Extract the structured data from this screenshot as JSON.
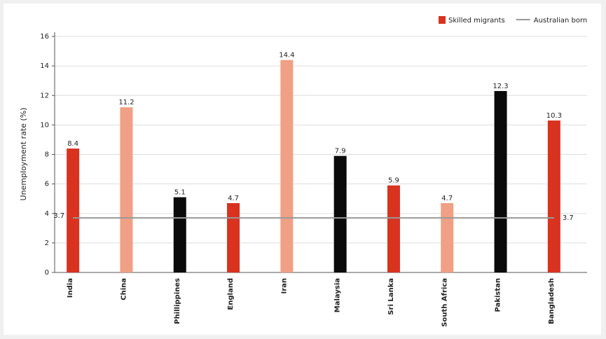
{
  "chart_data": {
    "type": "bar",
    "y_label": "Unemployment rate (%)",
    "categories": [
      "India",
      "China",
      "Phillippines",
      "England",
      "Iran",
      "Malaysia",
      "Sri Lanka",
      "South Africa",
      "Pakistan",
      "Bangladesh"
    ],
    "series": [
      {
        "name": "Skilled migrants",
        "type": "bar",
        "color": "#d9321f",
        "colors": [
          "#d9321f",
          "#f0a084",
          "#0a0a0a",
          "#d9321f",
          "#f0a084",
          "#0a0a0a",
          "#d9321f",
          "#f0a084",
          "#0a0a0a",
          "#d9321f"
        ],
        "values": [
          8.4,
          11.2,
          5.1,
          4.7,
          14.4,
          7.9,
          5.9,
          4.7,
          12.3,
          10.3
        ]
      },
      {
        "name": "Australian born",
        "type": "line",
        "color": "#999999",
        "values": [
          3.7,
          3.7,
          3.7,
          3.7,
          3.7,
          3.7,
          3.7,
          3.7,
          3.7,
          3.7
        ]
      }
    ],
    "ylim": [
      0,
      16
    ],
    "yticks": [
      0,
      2,
      4,
      6,
      8,
      10,
      12,
      14,
      16
    ],
    "grid": true,
    "legend": "top-right"
  }
}
